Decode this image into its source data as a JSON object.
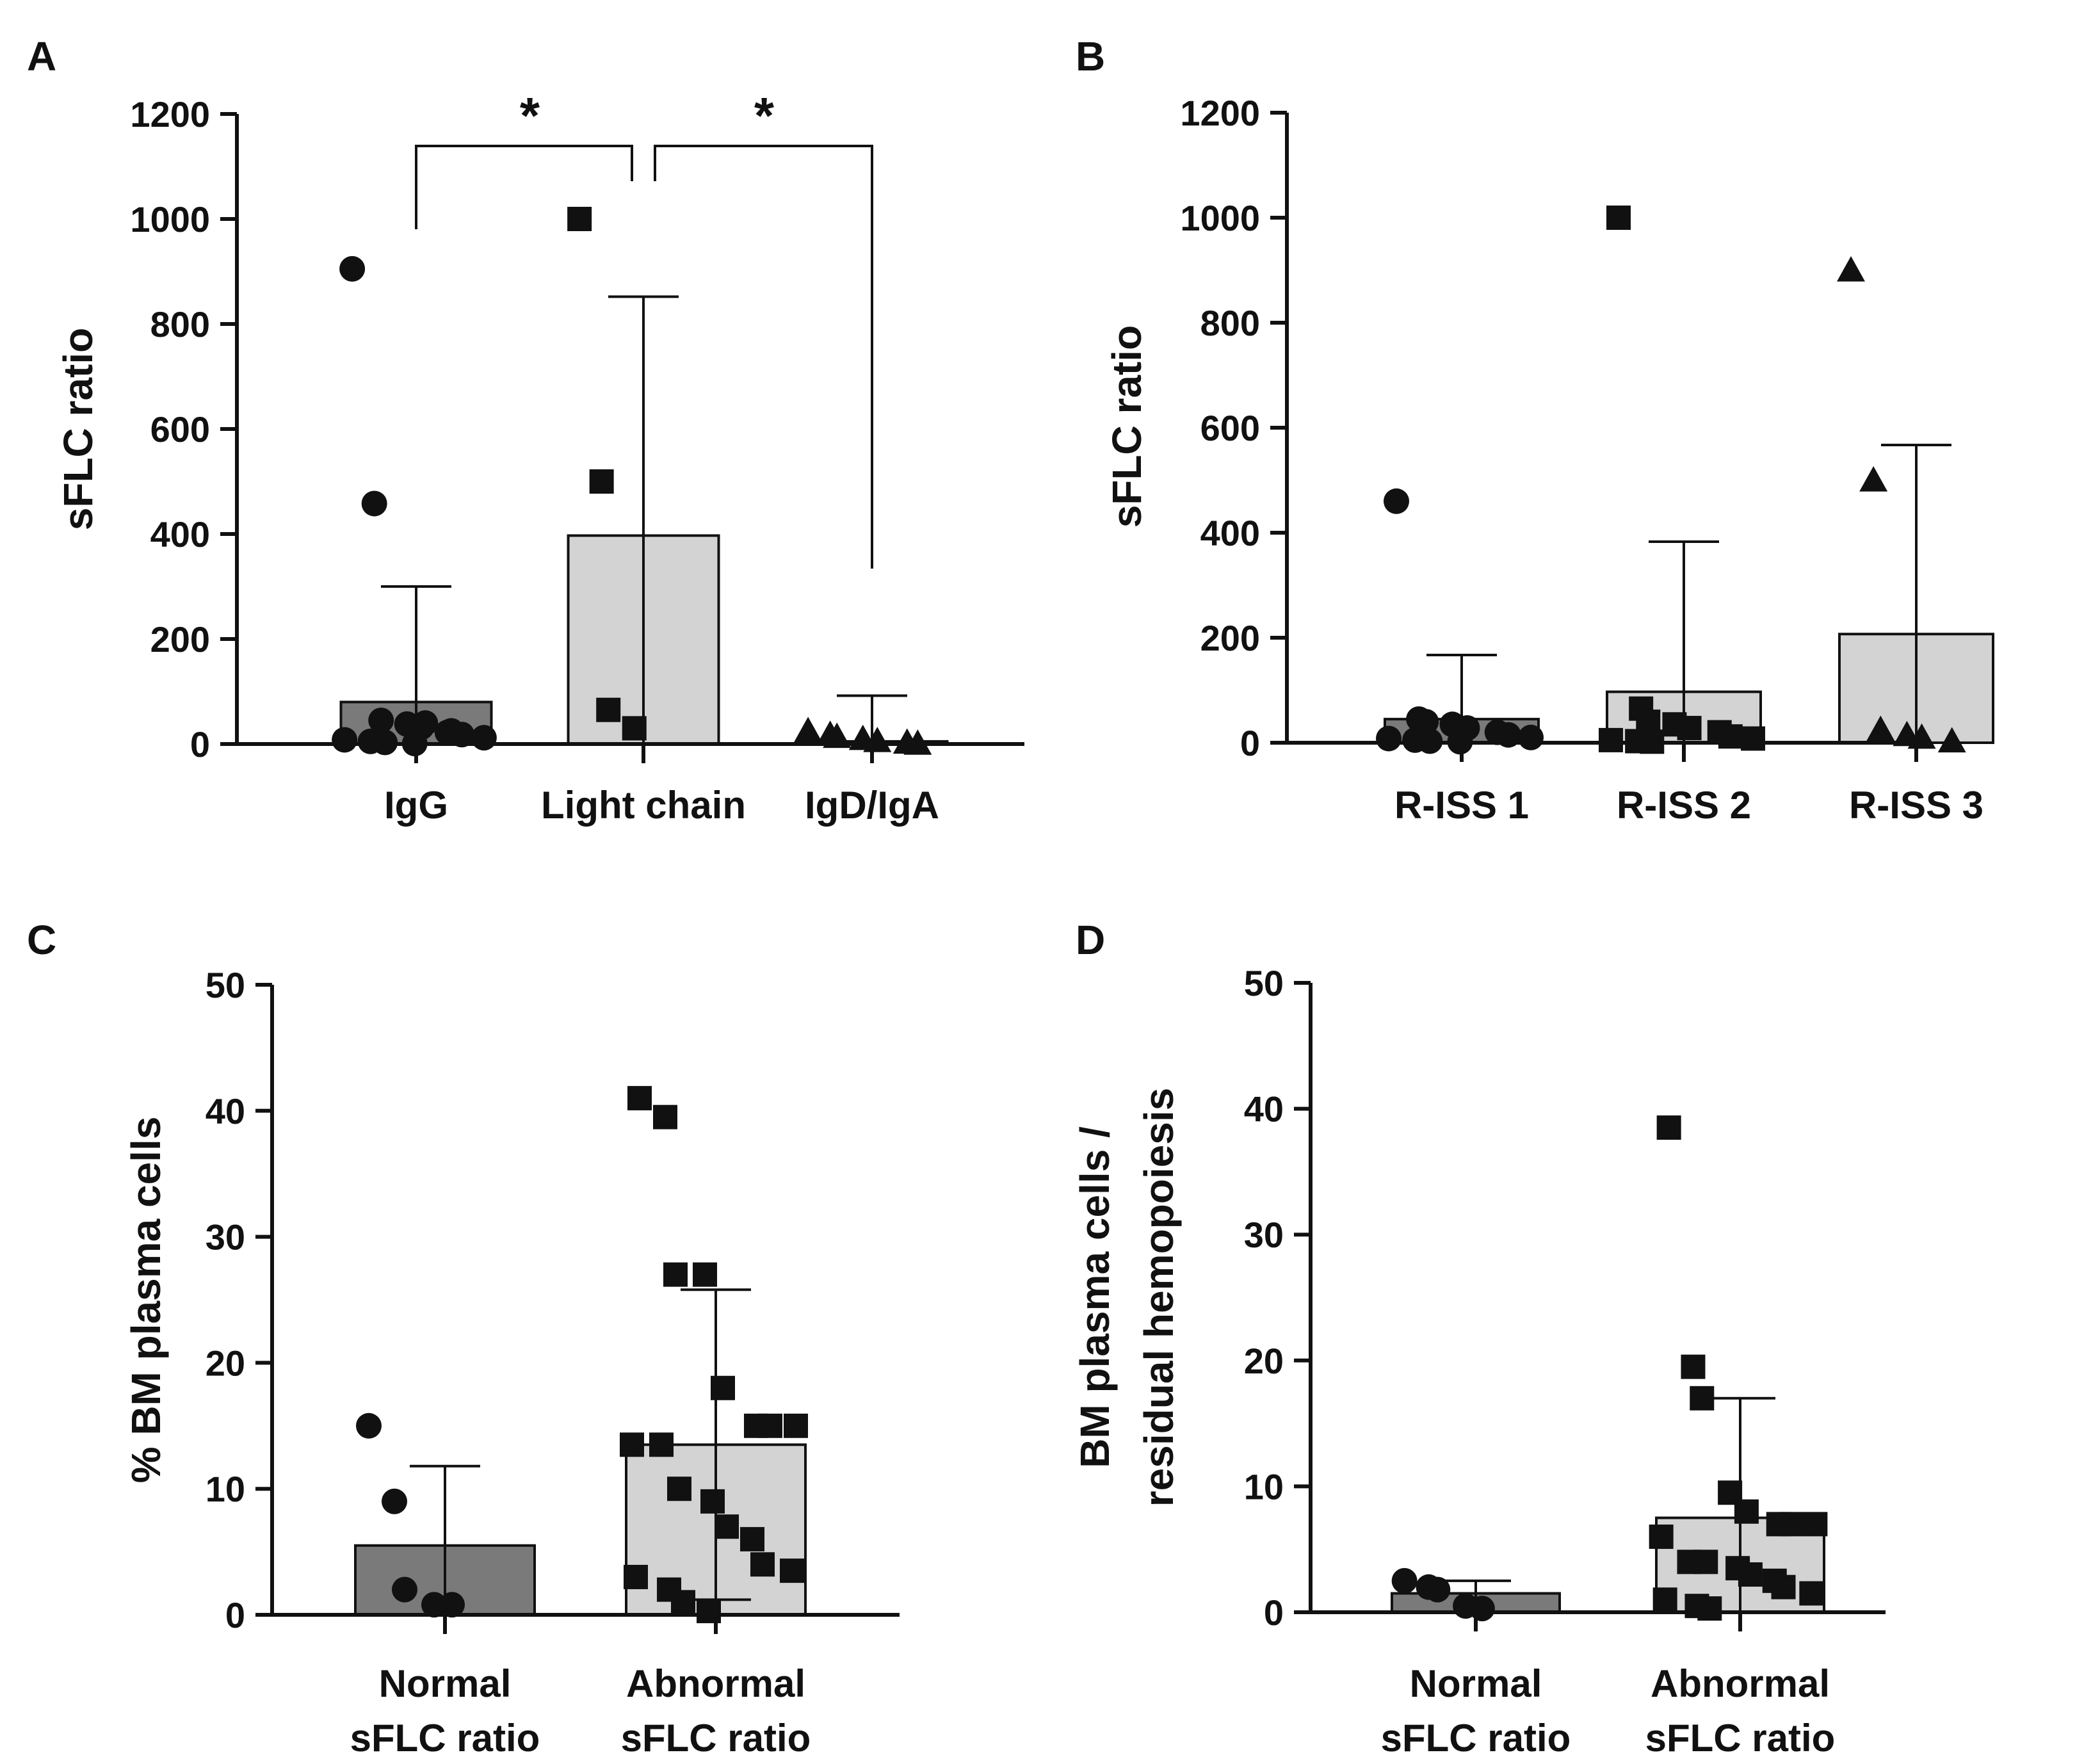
{
  "colors": {
    "bar_dark": "#7a7a7a",
    "bar_light": "#d3d3d3",
    "ink": "#111111",
    "background": "#ffffff"
  },
  "chart_data": [
    {
      "panel": "A",
      "type": "bar",
      "ylabel": "sFLC ratio",
      "ylim": [
        0,
        1200
      ],
      "yticks": [
        0,
        200,
        400,
        600,
        800,
        1000,
        1200
      ],
      "categories": [
        "IgG",
        "Light chain",
        "IgD/IgA"
      ],
      "series": [
        {
          "name": "IgG",
          "mean": 80,
          "error_upper": 300,
          "bar_color": "dark",
          "marker": "circle",
          "points": [
            905,
            458,
            45,
            38,
            32,
            25,
            18,
            12,
            8,
            5,
            3,
            1,
            40,
            22
          ]
        },
        {
          "name": "Light chain",
          "mean": 397,
          "error_upper": 852,
          "bar_color": "light",
          "marker": "square",
          "points": [
            1000,
            500,
            65,
            30
          ]
        },
        {
          "name": "IgD/IgA",
          "mean": 5,
          "error_upper": 92,
          "bar_color": "light",
          "marker": "triangle",
          "points": [
            25,
            18,
            14,
            10,
            6,
            3,
            1
          ]
        }
      ],
      "significance": [
        {
          "from": "IgG",
          "to": "Light chain",
          "label": "*"
        },
        {
          "from": "Light chain",
          "to": "IgD/IgA",
          "label": "*"
        }
      ]
    },
    {
      "panel": "B",
      "type": "bar",
      "ylabel": "sFLC ratio",
      "ylim": [
        0,
        1200
      ],
      "yticks": [
        0,
        200,
        400,
        600,
        800,
        1000,
        1200
      ],
      "categories": [
        "R-ISS 1",
        "R-ISS 2",
        "R-ISS 3"
      ],
      "series": [
        {
          "name": "R-ISS 1",
          "mean": 45,
          "error_upper": 167,
          "bar_color": "dark",
          "marker": "circle",
          "points": [
            460,
            45,
            40,
            35,
            28,
            20,
            15,
            10,
            8,
            5,
            3,
            2
          ]
        },
        {
          "name": "R-ISS 2",
          "mean": 97,
          "error_upper": 383,
          "bar_color": "light",
          "marker": "square",
          "points": [
            1000,
            65,
            40,
            35,
            28,
            20,
            12,
            8,
            5,
            3,
            2
          ]
        },
        {
          "name": "R-ISS 3",
          "mean": 207,
          "error_upper": 567,
          "bar_color": "light",
          "marker": "triangle",
          "points": [
            900,
            500,
            25,
            15,
            10,
            3
          ]
        }
      ]
    },
    {
      "panel": "C",
      "type": "bar",
      "ylabel": "% BM plasma cells",
      "ylim": [
        0,
        50
      ],
      "yticks": [
        0,
        10,
        20,
        30,
        40,
        50
      ],
      "categories": [
        "Normal\nsFLC ratio",
        "Abnormal\nsFLC ratio"
      ],
      "series": [
        {
          "name": "Normal sFLC ratio",
          "mean": 5.5,
          "error_upper": 11.8,
          "bar_color": "dark",
          "marker": "circle",
          "points": [
            15,
            9,
            2,
            0.8,
            0.8
          ]
        },
        {
          "name": "Abnormal sFLC ratio",
          "mean": 13.5,
          "error_upper": 25.8,
          "error_lower": 1.2,
          "bar_color": "light",
          "marker": "square",
          "points": [
            41,
            39.5,
            27,
            27,
            18,
            15,
            15,
            15,
            13.5,
            13.5,
            10,
            9,
            7,
            6,
            4,
            3.5,
            3,
            2,
            1,
            0.3
          ]
        }
      ]
    },
    {
      "panel": "D",
      "type": "bar",
      "ylabel": "BM plasma cells /\nresidual hemopoiesis",
      "ylim": [
        0,
        50
      ],
      "yticks": [
        0,
        10,
        20,
        30,
        40,
        50
      ],
      "categories": [
        "Normal\nsFLC ratio",
        "Abnormal\nsFLC ratio"
      ],
      "series": [
        {
          "name": "Normal sFLC ratio",
          "mean": 1.5,
          "error_upper": 2.5,
          "bar_color": "dark",
          "marker": "circle",
          "points": [
            2.5,
            2,
            1.8,
            0.5,
            0.3
          ]
        },
        {
          "name": "Abnormal sFLC ratio",
          "mean": 7.5,
          "error_upper": 17,
          "bar_color": "light",
          "marker": "square",
          "points": [
            38.5,
            19.5,
            17,
            9.5,
            8,
            7,
            7,
            7,
            6,
            4,
            4,
            3.5,
            3,
            2.5,
            2,
            1.5,
            1,
            0.5,
            0.3
          ]
        }
      ]
    }
  ]
}
